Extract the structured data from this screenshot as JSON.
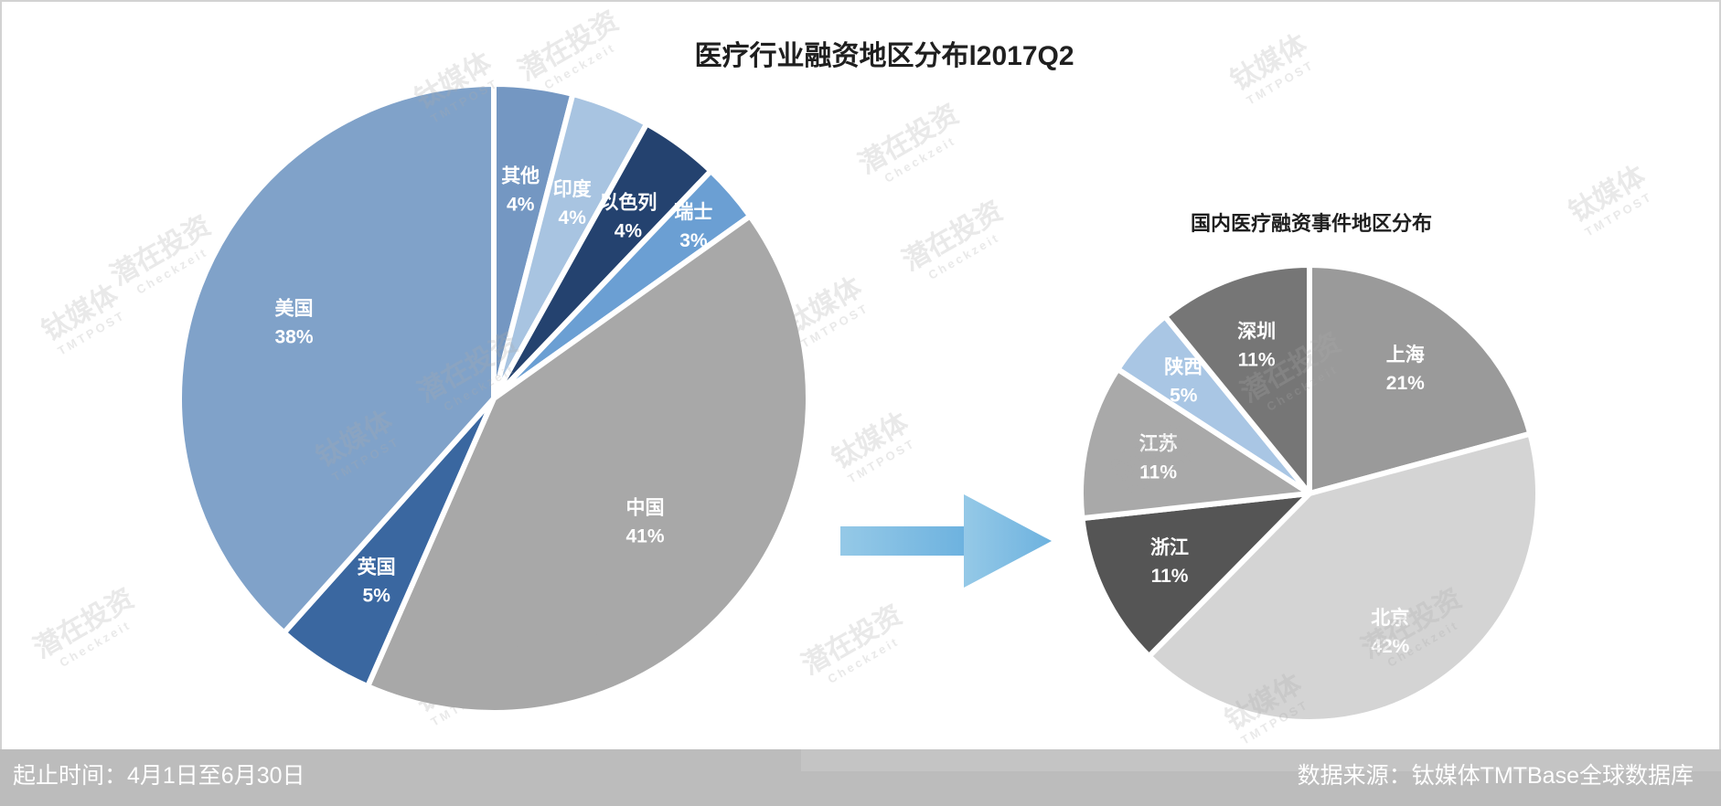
{
  "footer": {
    "period": "起止时间：4月1日至6月30日",
    "source": "数据来源：钛媒体TMTBase全球数据库"
  },
  "watermarks": {
    "brand_cn": "钛媒体",
    "brand_en": "TMTPOST",
    "partner_cn": "潜在投资",
    "partner_en": "Checkzeit"
  },
  "colors": {
    "arrow_start": "#95c9e7",
    "arrow_end": "#6db2df",
    "footer_bg": "#bcbcbc",
    "label_text": "#ffffff",
    "title_text": "#1f1f1f"
  },
  "chart_data": [
    {
      "type": "pie",
      "title": "医疗行业融资地区分布l2017Q2",
      "categories": [
        "其他",
        "印度",
        "以色列",
        "瑞士",
        "中国",
        "英国",
        "美国"
      ],
      "values": [
        4,
        4,
        4,
        3,
        41,
        5,
        38
      ],
      "unit": "%",
      "colors": [
        "#7497c2",
        "#a8c4e1",
        "#24426f",
        "#6b9fd3",
        "#a8a8a8",
        "#3a67a0",
        "#80a2c9"
      ]
    },
    {
      "type": "pie",
      "title": "国内医疗融资事件地区分布",
      "categories": [
        "上海",
        "北京",
        "浙江",
        "江苏",
        "陕西",
        "深圳"
      ],
      "values": [
        21,
        42,
        11,
        11,
        5,
        11
      ],
      "unit": "%",
      "colors": [
        "#9a9a9a",
        "#d4d4d4",
        "#555555",
        "#a9a9a9",
        "#a9c6e4",
        "#767676"
      ]
    }
  ]
}
